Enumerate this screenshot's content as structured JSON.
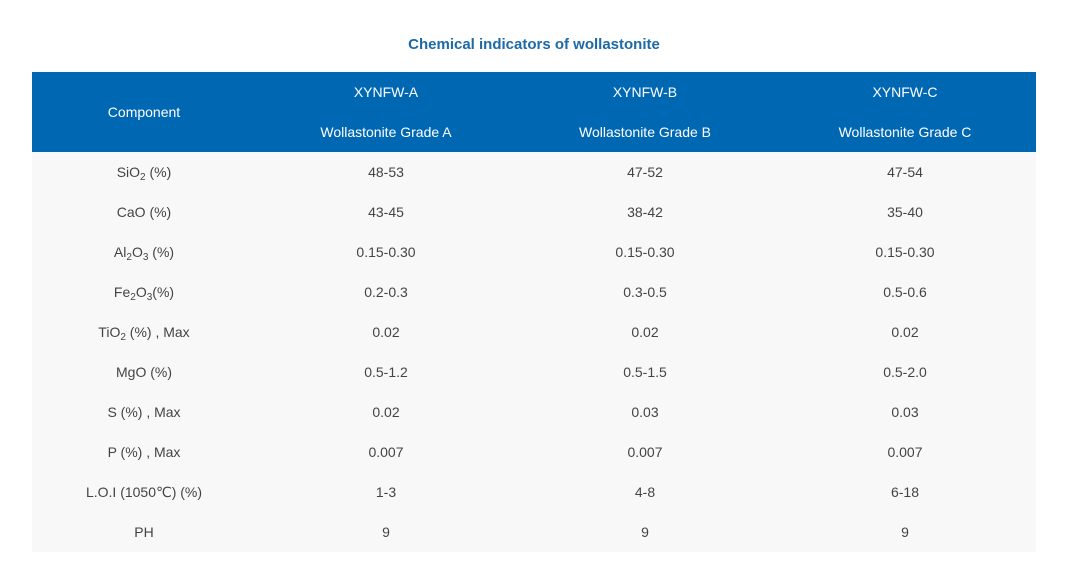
{
  "title": "Chemical indicators of wollastonite",
  "header": {
    "component": "Component",
    "grades": [
      {
        "code": "XYNFW-A",
        "name": "Wollastonite Grade A"
      },
      {
        "code": "XYNFW-B",
        "name": "Wollastonite Grade B"
      },
      {
        "code": "XYNFW-C",
        "name": "Wollastonite Grade C"
      }
    ]
  },
  "rows": [
    {
      "component": {
        "pre": "SiO",
        "sub": "2",
        "post": " (%)"
      },
      "values": [
        "48-53",
        "47-52",
        "47-54"
      ]
    },
    {
      "component": {
        "pre": "CaO (%)",
        "sub": "",
        "post": ""
      },
      "values": [
        "43-45",
        "38-42",
        "35-40"
      ]
    },
    {
      "component": {
        "pre": "Al",
        "sub": "2",
        "mid": "O",
        "sub2": "3",
        "post": " (%)"
      },
      "values": [
        "0.15-0.30",
        "0.15-0.30",
        "0.15-0.30"
      ]
    },
    {
      "component": {
        "pre": "Fe",
        "sub": "2",
        "mid": "O",
        "sub2": "3",
        "post": "(%)"
      },
      "values": [
        "0.2-0.3",
        "0.3-0.5",
        "0.5-0.6"
      ]
    },
    {
      "component": {
        "pre": "TiO",
        "sub": "2",
        "post": " (%) , Max"
      },
      "values": [
        "0.02",
        "0.02",
        "0.02"
      ]
    },
    {
      "component": {
        "pre": "MgO (%)",
        "sub": "",
        "post": ""
      },
      "values": [
        "0.5-1.2",
        "0.5-1.5",
        "0.5-2.0"
      ]
    },
    {
      "component": {
        "pre": "S (%) , Max",
        "sub": "",
        "post": ""
      },
      "values": [
        "0.02",
        "0.03",
        "0.03"
      ]
    },
    {
      "component": {
        "pre": "P (%) , Max",
        "sub": "",
        "post": ""
      },
      "values": [
        "0.007",
        "0.007",
        "0.007"
      ]
    },
    {
      "component": {
        "pre": "L.O.I (1050℃) (%)",
        "sub": "",
        "post": ""
      },
      "values": [
        "1-3",
        "4-8",
        "6-18"
      ]
    },
    {
      "component": {
        "pre": "PH",
        "sub": "",
        "post": ""
      },
      "values": [
        "9",
        "9",
        "9"
      ]
    }
  ]
}
